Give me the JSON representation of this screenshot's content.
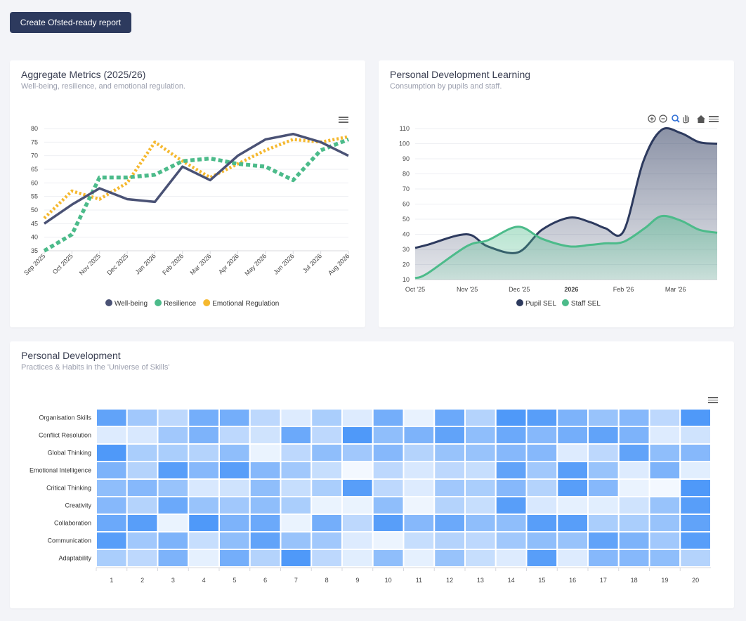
{
  "toolbar": {
    "report_button": "Create Ofsted-ready report"
  },
  "cards": {
    "aggregate": {
      "title": "Aggregate Metrics (2025/26)",
      "subtitle": "Well-being, resilience, and emotional regulation."
    },
    "learning": {
      "title": "Personal Development Learning",
      "subtitle": "Consumption by pupils and staff."
    },
    "development": {
      "title": "Personal Development",
      "subtitle": "Practices & Habits in the 'Universe of Skills'"
    }
  },
  "colors": {
    "navy": "#2d3a5e",
    "green": "#4cbb8a",
    "yellow": "#f5b82e",
    "heat_base": "#3d8ef8"
  },
  "chart_data": [
    {
      "id": "aggregate",
      "type": "line",
      "categories": [
        "Sep 2025",
        "Oct 2025",
        "Nov 2025",
        "Dec 2025",
        "Jan 2026",
        "Feb 2026",
        "Mar 2026",
        "Apr 2026",
        "May 2026",
        "Jun 2026",
        "Jul 2026",
        "Aug 2026"
      ],
      "ylim": [
        35,
        80
      ],
      "yticks": [
        35,
        40,
        45,
        50,
        55,
        60,
        65,
        70,
        75,
        80
      ],
      "series": [
        {
          "name": "Well-being",
          "color": "#4a5275",
          "style": "solid",
          "values": [
            45,
            52,
            58,
            54,
            53,
            66,
            61,
            70,
            76,
            78,
            75,
            70
          ]
        },
        {
          "name": "Resilience",
          "color": "#4cbb8a",
          "style": "dashed",
          "values": [
            35,
            41,
            62,
            62,
            63,
            68,
            69,
            67,
            66,
            61,
            72,
            76
          ]
        },
        {
          "name": "Emotional Regulation",
          "color": "#f5b82e",
          "style": "dotted",
          "values": [
            47,
            57,
            54,
            60,
            75,
            68,
            62,
            67,
            72,
            76,
            75,
            77
          ]
        }
      ],
      "legend": [
        "Well-being",
        "Resilience",
        "Emotional Regulation"
      ]
    },
    {
      "id": "learning",
      "type": "area",
      "ylim": [
        10,
        110
      ],
      "yticks": [
        10,
        20,
        30,
        40,
        50,
        60,
        70,
        80,
        90,
        100,
        110
      ],
      "xticks": [
        {
          "label": "Oct '25",
          "pos": 0.0,
          "bold": false
        },
        {
          "label": "Nov '25",
          "pos": 0.1724,
          "bold": false
        },
        {
          "label": "Dec '25",
          "pos": 0.3448,
          "bold": false
        },
        {
          "label": "2026",
          "pos": 0.5172,
          "bold": true
        },
        {
          "label": "Feb '26",
          "pos": 0.6897,
          "bold": false
        },
        {
          "label": "Mar '26",
          "pos": 0.8621,
          "bold": false
        }
      ],
      "series": [
        {
          "name": "Pupil SEL",
          "color": "#2d3a5e",
          "points": [
            [
              0,
              31
            ],
            [
              0.04,
              33
            ],
            [
              0.17,
              40
            ],
            [
              0.24,
              32
            ],
            [
              0.34,
              28
            ],
            [
              0.42,
              43
            ],
            [
              0.51,
              51
            ],
            [
              0.58,
              48
            ],
            [
              0.63,
              44
            ],
            [
              0.69,
              42
            ],
            [
              0.755,
              88
            ],
            [
              0.815,
              109
            ],
            [
              0.88,
              107
            ],
            [
              0.94,
              101
            ],
            [
              1.0,
              100
            ]
          ]
        },
        {
          "name": "Staff SEL",
          "color": "#4cbb8a",
          "points": [
            [
              0,
              11
            ],
            [
              0.04,
              14
            ],
            [
              0.17,
              32
            ],
            [
              0.24,
              36
            ],
            [
              0.34,
              45
            ],
            [
              0.42,
              37
            ],
            [
              0.51,
              32
            ],
            [
              0.58,
              33
            ],
            [
              0.63,
              34
            ],
            [
              0.69,
              35
            ],
            [
              0.76,
              44
            ],
            [
              0.815,
              52
            ],
            [
              0.88,
              49
            ],
            [
              0.94,
              43
            ],
            [
              1.0,
              41
            ]
          ]
        }
      ],
      "legend": [
        "Pupil SEL",
        "Staff SEL"
      ]
    },
    {
      "id": "development",
      "type": "heatmap",
      "rows": [
        "Organisation Skills",
        "Conflict Resolution",
        "Global Thinking",
        "Emotional Intelligence",
        "Critical Thinking",
        "Creativity",
        "Collaboration",
        "Communication",
        "Adaptability"
      ],
      "columns": [
        "1",
        "2",
        "3",
        "4",
        "5",
        "6",
        "7",
        "8",
        "9",
        "10",
        "11",
        "12",
        "13",
        "14",
        "15",
        "16",
        "17",
        "18",
        "19",
        "20"
      ],
      "values": [
        [
          0.8,
          0.45,
          0.3,
          0.7,
          0.7,
          0.3,
          0.12,
          0.4,
          0.12,
          0.7,
          0.06,
          0.75,
          0.35,
          0.9,
          0.85,
          0.65,
          0.5,
          0.6,
          0.3,
          0.9
        ],
        [
          0.12,
          0.15,
          0.45,
          0.65,
          0.3,
          0.2,
          0.75,
          0.3,
          0.9,
          0.55,
          0.65,
          0.8,
          0.55,
          0.75,
          0.6,
          0.7,
          0.8,
          0.65,
          0.12,
          0.2
        ],
        [
          0.9,
          0.4,
          0.4,
          0.35,
          0.55,
          0.05,
          0.3,
          0.55,
          0.45,
          0.6,
          0.35,
          0.5,
          0.5,
          0.6,
          0.6,
          0.12,
          0.3,
          0.8,
          0.55,
          0.6
        ],
        [
          0.65,
          0.35,
          0.85,
          0.6,
          0.85,
          0.6,
          0.45,
          0.25,
          0.0,
          0.3,
          0.15,
          0.3,
          0.25,
          0.8,
          0.45,
          0.85,
          0.5,
          0.12,
          0.65,
          0.1
        ],
        [
          0.55,
          0.6,
          0.5,
          0.15,
          0.2,
          0.55,
          0.25,
          0.4,
          0.85,
          0.3,
          0.12,
          0.45,
          0.4,
          0.6,
          0.35,
          0.85,
          0.6,
          0.05,
          0.0,
          0.9
        ],
        [
          0.6,
          0.35,
          0.75,
          0.5,
          0.45,
          0.55,
          0.4,
          0.05,
          0.05,
          0.55,
          0.03,
          0.35,
          0.25,
          0.85,
          0.15,
          0.08,
          0.1,
          0.2,
          0.5,
          0.85
        ],
        [
          0.75,
          0.85,
          0.05,
          0.9,
          0.65,
          0.75,
          0.05,
          0.7,
          0.3,
          0.85,
          0.6,
          0.75,
          0.55,
          0.55,
          0.85,
          0.85,
          0.4,
          0.4,
          0.5,
          0.8
        ],
        [
          0.85,
          0.45,
          0.65,
          0.25,
          0.55,
          0.8,
          0.5,
          0.45,
          0.12,
          0.04,
          0.25,
          0.35,
          0.3,
          0.45,
          0.55,
          0.5,
          0.8,
          0.65,
          0.45,
          0.85
        ],
        [
          0.4,
          0.3,
          0.65,
          0.08,
          0.7,
          0.35,
          0.9,
          0.3,
          0.1,
          0.55,
          0.08,
          0.5,
          0.25,
          0.12,
          0.85,
          0.12,
          0.6,
          0.6,
          0.55,
          0.35
        ]
      ]
    }
  ]
}
